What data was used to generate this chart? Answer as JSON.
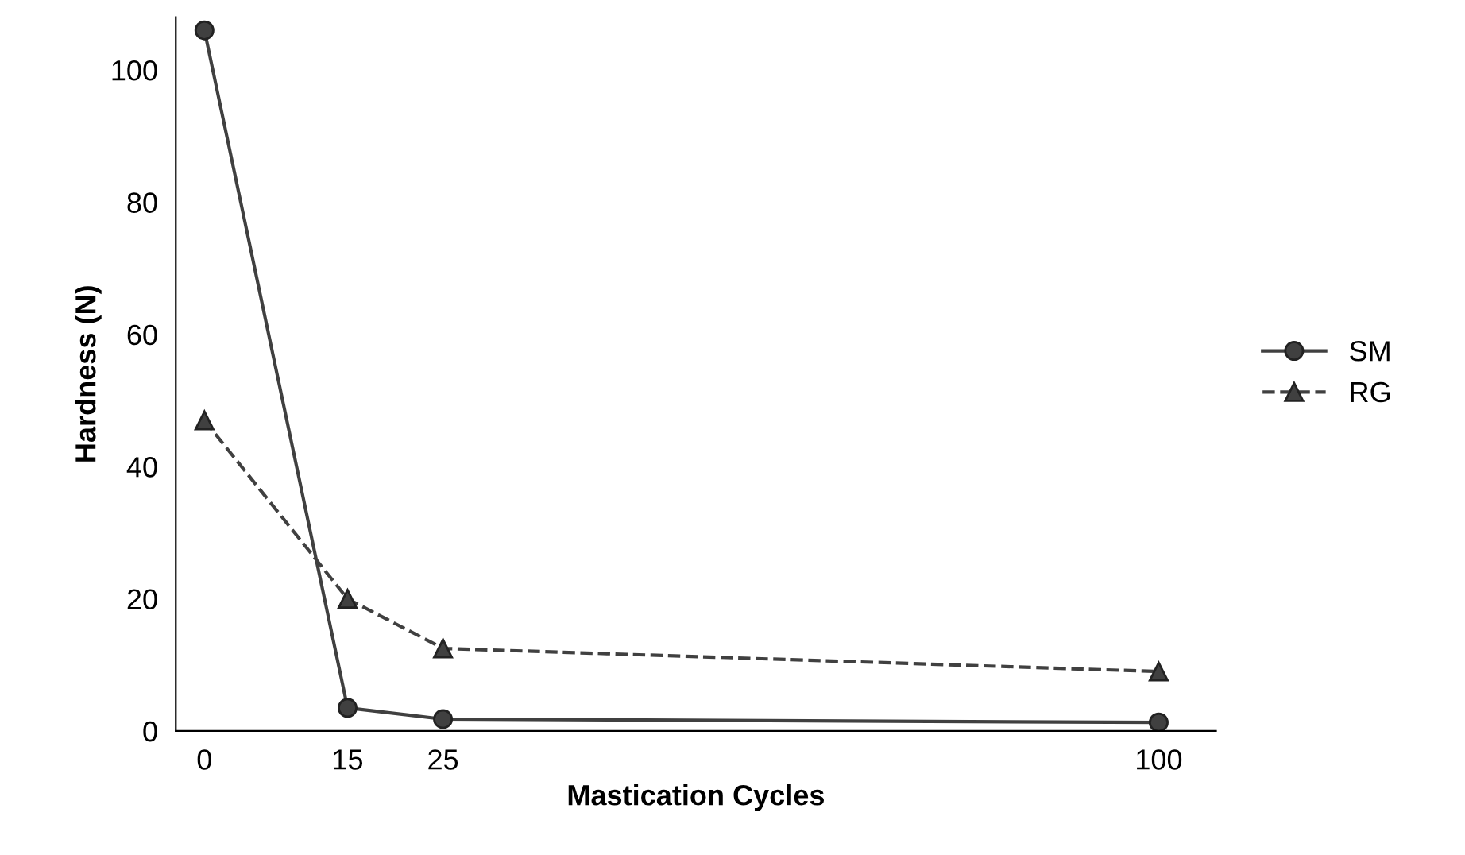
{
  "chart_data": {
    "type": "line",
    "xlabel": "Mastication Cycles",
    "ylabel": "Hardness (N)",
    "x": [
      0,
      15,
      25,
      100
    ],
    "series": [
      {
        "name": "SM",
        "color": "#404040",
        "values": [
          106,
          3.5,
          1.8,
          1.3
        ],
        "marker": "circle",
        "line_style": "solid"
      },
      {
        "name": "RG",
        "color": "#404040",
        "values": [
          47,
          20,
          12.5,
          9
        ],
        "marker": "triangle",
        "line_style": "dashed"
      }
    ],
    "xlim": [
      -3,
      106
    ],
    "xticks": [
      0,
      15,
      25,
      100
    ],
    "ylim": [
      0,
      108
    ],
    "yticks": [
      0,
      20,
      40,
      60,
      80,
      100
    ],
    "grid": false,
    "legend": "right"
  }
}
